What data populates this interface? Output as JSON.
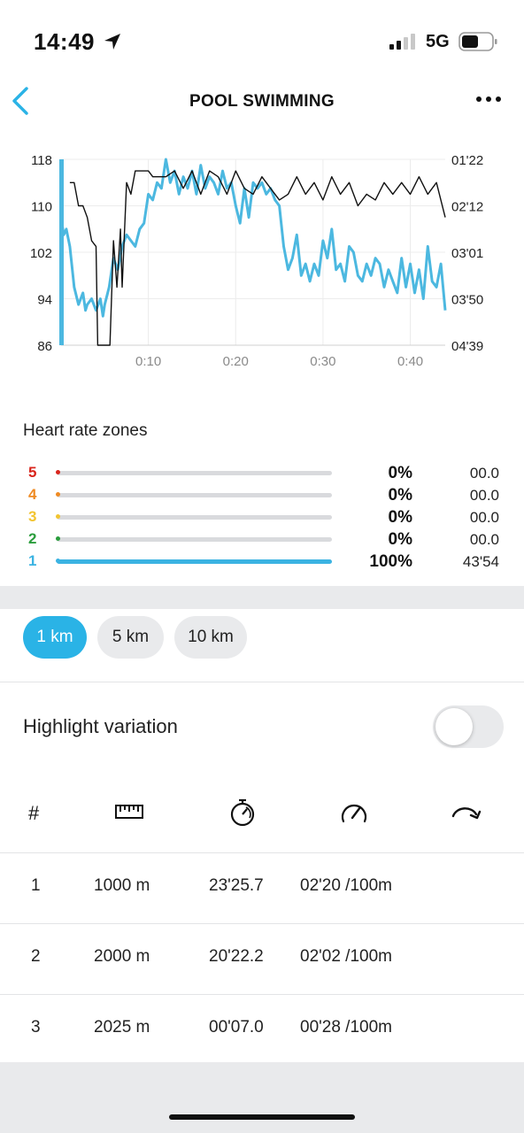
{
  "status_bar": {
    "time": "14:49",
    "network": "5G"
  },
  "header": {
    "title": "POOL SWIMMING"
  },
  "chart_data": {
    "type": "line",
    "x_ticks": [
      "0:10",
      "0:20",
      "0:30",
      "0:40"
    ],
    "x_tick_minutes": [
      10,
      20,
      30,
      40
    ],
    "x_range_minutes": [
      0,
      44
    ],
    "y_left": {
      "ticks": [
        "118",
        "110",
        "102",
        "94",
        "86"
      ],
      "range": [
        86,
        118
      ]
    },
    "y_right": {
      "ticks": [
        "01'22",
        "02'12",
        "03'01",
        "03'50",
        "04'39"
      ]
    },
    "series": [
      {
        "color": "#4cb8e0",
        "axis": "left",
        "x": [
          0,
          0.3,
          0.6,
          1,
          1.5,
          2,
          2.5,
          2.8,
          3,
          3.5,
          4,
          4.5,
          4.8,
          5,
          5.5,
          6,
          6.5,
          7,
          7.5,
          8,
          8.5,
          9,
          9.5,
          10,
          10.5,
          11,
          11.5,
          12,
          12.5,
          13,
          13.5,
          14,
          14.5,
          15,
          15.5,
          16,
          16.5,
          17,
          17.5,
          18,
          18.5,
          19,
          19.5,
          20,
          20.5,
          21,
          21.5,
          22,
          22.5,
          23,
          23.5,
          24,
          24.5,
          25,
          25.5,
          26,
          26.5,
          27,
          27.5,
          28,
          28.5,
          29,
          29.5,
          30,
          30.5,
          31,
          31.5,
          32,
          32.5,
          33,
          33.5,
          34,
          34.5,
          35,
          35.5,
          36,
          36.5,
          37,
          37.5,
          38,
          38.5,
          39,
          39.5,
          40,
          40.5,
          41,
          41.5,
          42,
          42.5,
          43,
          43.5,
          44
        ],
        "values": [
          108,
          105,
          106,
          103,
          96,
          93,
          95,
          92,
          93,
          94,
          92,
          94,
          91,
          93,
          96,
          101,
          99,
          103,
          105,
          104,
          103,
          106,
          107,
          112,
          111,
          114,
          113,
          118,
          114,
          116,
          112,
          115,
          113,
          116,
          112,
          117,
          113,
          115,
          114,
          112,
          116,
          113,
          114,
          110,
          107,
          113,
          108,
          114,
          113,
          114,
          112,
          113,
          111,
          110,
          103,
          99,
          101,
          105,
          98,
          100,
          97,
          100,
          98,
          104,
          101,
          106,
          99,
          100,
          97,
          103,
          102,
          98,
          97,
          100,
          98,
          101,
          100,
          96,
          99,
          97,
          95,
          101,
          96,
          100,
          95,
          99,
          94,
          103,
          97,
          96,
          100,
          92
        ]
      },
      {
        "color": "#111111",
        "axis": "right",
        "x": [
          1,
          1.5,
          2,
          2.5,
          3,
          3.5,
          4,
          4.2,
          4.5,
          5,
          5.2,
          5.6,
          6,
          6.4,
          6.8,
          7,
          7.5,
          8,
          8.5,
          9,
          9.5,
          10,
          10.5,
          11,
          12,
          13,
          14,
          15,
          16,
          17,
          18,
          19,
          20,
          21,
          22,
          23,
          24,
          25,
          26,
          27,
          28,
          29,
          30,
          31,
          32,
          33,
          34,
          35,
          36,
          37,
          38,
          39,
          40,
          41,
          42,
          43,
          44
        ],
        "values": [
          114,
          114,
          110,
          110,
          108,
          104,
          103,
          86,
          86,
          86,
          86,
          86,
          104,
          96,
          106,
          96,
          114,
          112,
          116,
          116,
          116,
          116,
          115,
          115,
          115,
          116,
          113,
          116,
          112,
          116,
          115,
          112,
          116,
          113,
          112,
          115,
          113,
          111,
          112,
          115,
          112,
          114,
          111,
          115,
          112,
          114,
          110,
          112,
          111,
          114,
          112,
          114,
          112,
          115,
          112,
          114,
          108
        ]
      }
    ]
  },
  "hr_zones": {
    "title": "Heart rate zones",
    "zones": [
      {
        "num": "5",
        "color": "#d9251c",
        "pct": "0%",
        "fraction": 0,
        "time": "00.0"
      },
      {
        "num": "4",
        "color": "#ef8a22",
        "pct": "0%",
        "fraction": 0,
        "time": "00.0"
      },
      {
        "num": "3",
        "color": "#f2c430",
        "pct": "0%",
        "fraction": 0,
        "time": "00.0"
      },
      {
        "num": "2",
        "color": "#2a9d3c",
        "pct": "0%",
        "fraction": 0,
        "time": "00.0"
      },
      {
        "num": "1",
        "color": "#3bb3e2",
        "pct": "100%",
        "fraction": 1,
        "time": "43'54"
      }
    ]
  },
  "distance_chips": [
    "1 km",
    "5 km",
    "10 km"
  ],
  "highlight_variation": {
    "label": "Highlight variation",
    "enabled": false
  },
  "laps": {
    "header_hash": "#",
    "rows": [
      {
        "num": "1",
        "distance": "1000 m",
        "time": "23'25.7",
        "pace": "02'20 /100m"
      },
      {
        "num": "2",
        "distance": "2000 m",
        "time": "20'22.2",
        "pace": "02'02 /100m"
      },
      {
        "num": "3",
        "distance": "2025 m",
        "time": "00'07.0",
        "pace": "00'28 /100m"
      }
    ]
  }
}
